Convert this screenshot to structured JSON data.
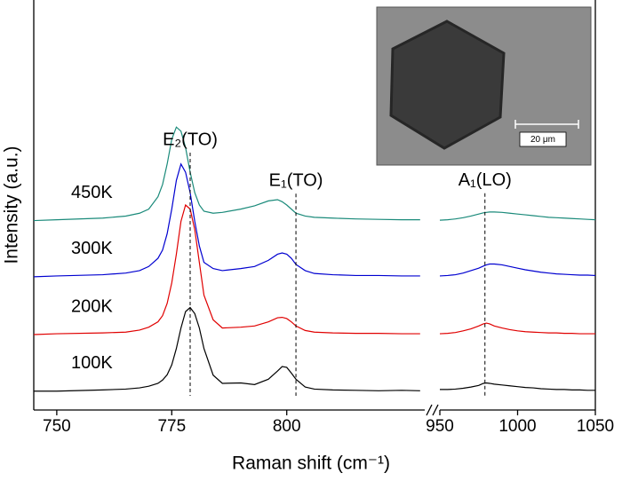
{
  "chart_data": {
    "type": "line",
    "xlabel": "Raman shift (cm⁻¹)",
    "ylabel": "Intensity (a.u.)",
    "ylim": [
      0,
      100
    ],
    "inset": {
      "scale_label": "20 μm"
    },
    "panels": [
      {
        "xlim": [
          745,
          830
        ],
        "xticks": [
          750,
          775,
          800
        ],
        "x": [
          745,
          750,
          760,
          765,
          768,
          770,
          772,
          773,
          774,
          775,
          776,
          777,
          778,
          779,
          780,
          781,
          782,
          784,
          786,
          790,
          793,
          796,
          798,
          799,
          800,
          801,
          802,
          804,
          806,
          810,
          815,
          820,
          825,
          829
        ],
        "annotations": [
          {
            "label": "E₂(TO)",
            "x": 779
          },
          {
            "label": "E₁(TO)",
            "x": 802
          }
        ],
        "series": [
          {
            "name": "100K",
            "color": "#000000",
            "values": [
              4.6,
              4.6,
              4.9,
              5.1,
              5.4,
              5.8,
              6.5,
              7.3,
              8.6,
              11,
              15,
              20,
              24,
              25,
              23.5,
              20,
              15,
              8.5,
              6.5,
              6.6,
              6.2,
              7.5,
              9.5,
              10.6,
              10.4,
              9,
              7.5,
              5.6,
              5.1,
              4.9,
              4.8,
              4.7,
              4.8,
              4.7
            ]
          },
          {
            "name": "200K",
            "color": "#e00000",
            "values": [
              18.4,
              18.6,
              18.8,
              19,
              19.5,
              20.2,
              21.5,
              23,
              26,
              31,
              38,
              46,
              50,
              49,
              44,
              36,
              28,
              22,
              20,
              20.2,
              20.5,
              21.5,
              22.5,
              22.6,
              22.3,
              21.5,
              20.5,
              19.4,
              19,
              18.8,
              18.7,
              18.7,
              18.6,
              18.6
            ]
          },
          {
            "name": "300K",
            "color": "#0000d0",
            "values": [
              32.5,
              32.7,
              33,
              33.4,
              34,
              35,
              37,
              39,
              43,
              49,
              56,
              60,
              58,
              53,
              46,
              40,
              36,
              34.5,
              34,
              34.5,
              35,
              36.5,
              38,
              38.3,
              38,
              37,
              35.5,
              34,
              33.3,
              33,
              32.8,
              32.8,
              32.7,
              32.7
            ]
          },
          {
            "name": "450K",
            "color": "#1a8a7a",
            "values": [
              46.2,
              46.4,
              46.8,
              47.3,
              48,
              49,
              52,
              55,
              60,
              66,
              69,
              68,
              64,
              58,
              53,
              50,
              48.5,
              48,
              48.2,
              49,
              49.8,
              51,
              51.3,
              50.8,
              50,
              49,
              48,
              47.3,
              47,
              46.8,
              46.6,
              46.5,
              46.4,
              46.4
            ]
          }
        ]
      },
      {
        "xlim": [
          950,
          1050
        ],
        "xticks": [
          950,
          1000,
          1050
        ],
        "x": [
          950,
          955,
          960,
          965,
          970,
          975,
          978,
          980,
          982,
          985,
          990,
          995,
          1000,
          1005,
          1010,
          1015,
          1020,
          1025,
          1030,
          1035,
          1040,
          1045,
          1050
        ],
        "annotations": [
          {
            "label": "A₁(LO)",
            "x": 979
          }
        ],
        "series": [
          {
            "color": "#000000",
            "values": [
              5,
              5,
              5.1,
              5.3,
              5.6,
              6,
              6.5,
              6.6,
              6.5,
              6.3,
              6.1,
              5.9,
              5.7,
              5.5,
              5.4,
              5.2,
              5.1,
              5,
              5,
              4.9,
              4.9,
              4.8,
              4.8
            ]
          },
          {
            "color": "#e00000",
            "values": [
              18.6,
              18.7,
              18.9,
              19.3,
              19.8,
              20.5,
              21,
              21.2,
              21,
              20.5,
              20,
              19.6,
              19.3,
              19.1,
              19,
              18.9,
              18.8,
              18.8,
              18.7,
              18.7,
              18.6,
              18.6,
              18.6
            ]
          },
          {
            "color": "#0000d0",
            "values": [
              32.7,
              32.8,
              33,
              33.4,
              34,
              34.6,
              35.1,
              35.4,
              35.6,
              35.6,
              35.4,
              35,
              34.6,
              34.2,
              33.9,
              33.6,
              33.4,
              33.2,
              33.1,
              33,
              32.9,
              32.9,
              32.8
            ]
          },
          {
            "color": "#1a8a7a",
            "values": [
              46.3,
              46.4,
              46.6,
              46.9,
              47.3,
              47.8,
              48.1,
              48.2,
              48.3,
              48.3,
              48.2,
              48,
              47.8,
              47.6,
              47.4,
              47.2,
              47,
              46.9,
              46.8,
              46.7,
              46.6,
              46.5,
              46.4
            ]
          }
        ]
      }
    ]
  }
}
